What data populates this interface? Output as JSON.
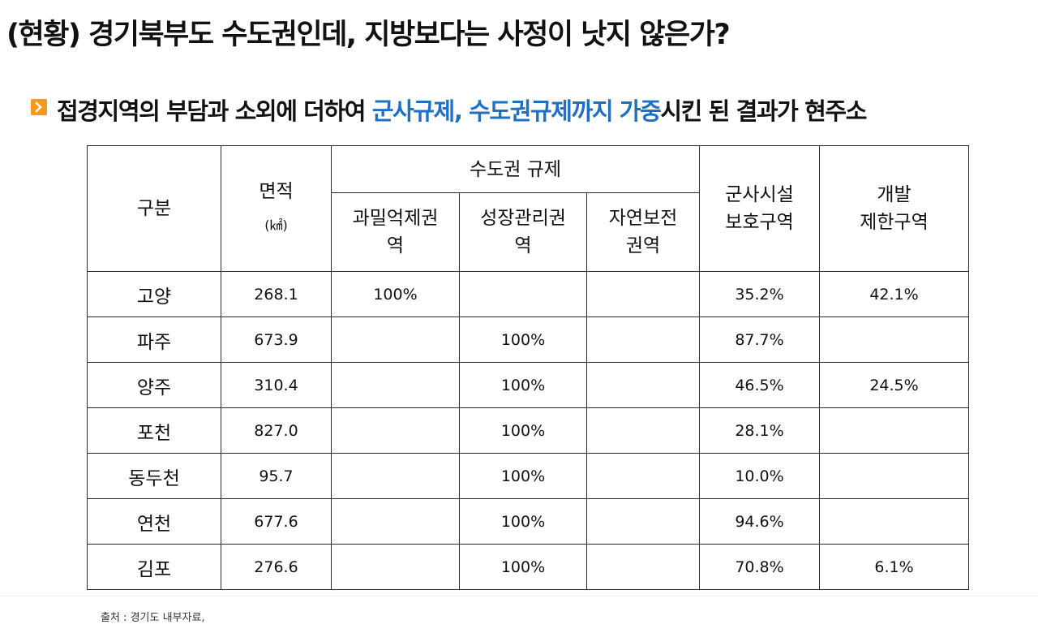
{
  "title": "(현황) 경기북부도 수도권인데, 지방보다는 사정이 낫지 않은가?",
  "subtitle": {
    "before": "접경지역의 부담과 소외에 더하여 ",
    "highlight1": "군사규제, 수도권규제까지 가중",
    "after": "시킨 된 결과가 현주소"
  },
  "table": {
    "headers": {
      "category": "구분",
      "area": "면적",
      "area_unit": "(㎢)",
      "capital_regulation": "수도권 규제",
      "overcrowding_line1": "과밀억제권",
      "overcrowding_line2": "역",
      "growth_line1": "성장관리권",
      "growth_line2": "역",
      "nature_line1": "자연보전",
      "nature_line2": "권역",
      "military_line1": "군사시설",
      "military_line2": "보호구역",
      "dev_line1": "개발",
      "dev_line2": "제한구역"
    },
    "rows": [
      {
        "name": "고양",
        "area": "268.1",
        "overcrowding": "100%",
        "growth": "",
        "nature": "",
        "military": "35.2%",
        "dev": "42.1%"
      },
      {
        "name": "파주",
        "area": "673.9",
        "overcrowding": "",
        "growth": "100%",
        "nature": "",
        "military": "87.7%",
        "dev": ""
      },
      {
        "name": "양주",
        "area": "310.4",
        "overcrowding": "",
        "growth": "100%",
        "nature": "",
        "military": "46.5%",
        "dev": "24.5%"
      },
      {
        "name": "포천",
        "area": "827.0",
        "overcrowding": "",
        "growth": "100%",
        "nature": "",
        "military": "28.1%",
        "dev": ""
      },
      {
        "name": "동두천",
        "area": "95.7",
        "overcrowding": "",
        "growth": "100%",
        "nature": "",
        "military": "10.0%",
        "dev": ""
      },
      {
        "name": "연천",
        "area": "677.6",
        "overcrowding": "",
        "growth": "100%",
        "nature": "",
        "military": "94.6%",
        "dev": ""
      },
      {
        "name": "김포",
        "area": "276.6",
        "overcrowding": "",
        "growth": "100%",
        "nature": "",
        "military": "70.8%",
        "dev": "6.1%"
      }
    ]
  },
  "source": "출처 : 경기도 내부자료,",
  "colors": {
    "highlight": "#1f6fc5",
    "bullet": "#f39a1e"
  },
  "icons": {
    "bullet": "chevron-right-icon"
  }
}
